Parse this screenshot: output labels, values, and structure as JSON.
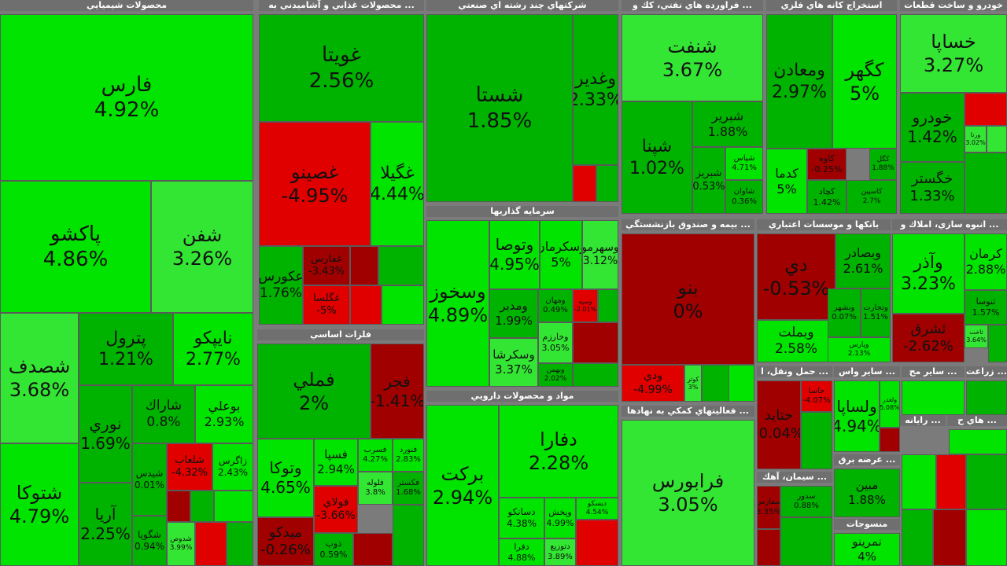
{
  "colors": {
    "strong_up": "#00e400",
    "mid_up": "#00b300",
    "light_up": "#33e633",
    "down": "#e00000",
    "dark_down": "#a10000",
    "header_bg": "#6f6f6f"
  },
  "chart_data": {
    "type": "treemap",
    "sectors": [
      {
        "name": "محصولات شيميايي",
        "tiles": [
          {
            "symbol": "فارس",
            "change": 4.92,
            "shade": "strong_up"
          },
          {
            "symbol": "پاكشو",
            "change": 4.86,
            "shade": "strong_up"
          },
          {
            "symbol": "شفن",
            "change": 3.26,
            "shade": "light_up"
          },
          {
            "symbol": "شصدف",
            "change": 3.68,
            "shade": "light_up"
          },
          {
            "symbol": "پترول",
            "change": 1.21,
            "shade": "mid_up"
          },
          {
            "symbol": "نايپكو",
            "change": 2.77,
            "shade": "strong_up"
          },
          {
            "symbol": "نوري",
            "change": 1.69,
            "shade": "mid_up"
          },
          {
            "symbol": "شاراك",
            "change": 0.8,
            "shade": "mid_up"
          },
          {
            "symbol": "بوعلي",
            "change": 2.93,
            "shade": "strong_up"
          },
          {
            "symbol": "شتوكا",
            "change": 4.79,
            "shade": "strong_up"
          },
          {
            "symbol": "آريا",
            "change": 2.25,
            "shade": "mid_up"
          },
          {
            "symbol": "شلعاب",
            "change": -4.32,
            "shade": "down"
          },
          {
            "symbol": "زاگرس",
            "change": 2.43,
            "shade": "strong_up"
          },
          {
            "symbol": "شيدس",
            "change": 0.01,
            "shade": "mid_up"
          },
          {
            "symbol": "شگويا",
            "change": 0.94,
            "shade": "mid_up"
          },
          {
            "symbol": "شدوص",
            "change": 3.99,
            "shade": "light_up"
          }
        ]
      },
      {
        "name": "... محصولات غذايي و آشاميدني به",
        "tiles": [
          {
            "symbol": "غويتا",
            "change": 2.56,
            "shade": "mid_up"
          },
          {
            "symbol": "غصينو",
            "change": -4.95,
            "shade": "down"
          },
          {
            "symbol": "غگيلا",
            "change": 4.44,
            "shade": "strong_up"
          },
          {
            "symbol": "عكورس",
            "change": 1.76,
            "shade": "mid_up"
          },
          {
            "symbol": "غفارس",
            "change": -3.43,
            "shade": "dark_down"
          },
          {
            "symbol": "غگلسا",
            "change": -5,
            "shade": "down"
          }
        ]
      },
      {
        "name": "شركتهاي چند رشته اي صنعتي",
        "tiles": [
          {
            "symbol": "شستا",
            "change": 1.85,
            "shade": "mid_up"
          },
          {
            "symbol": "وغدير",
            "change": 2.33,
            "shade": "mid_up"
          }
        ]
      },
      {
        "name": "... فراورده هاي نفتي، كك و",
        "tiles": [
          {
            "symbol": "شنفت",
            "change": 3.67,
            "shade": "light_up"
          },
          {
            "symbol": "شپنا",
            "change": 1.02,
            "shade": "mid_up"
          },
          {
            "symbol": "شبرير",
            "change": 1.88,
            "shade": "mid_up"
          },
          {
            "symbol": "شپاس",
            "change": 4.71,
            "shade": "strong_up"
          },
          {
            "symbol": "شبريز",
            "change": 0.53,
            "shade": "mid_up"
          },
          {
            "symbol": "شاوان",
            "change": 0.36,
            "shade": "mid_up"
          }
        ]
      },
      {
        "name": "استخراج كانه هاي فلزي",
        "tiles": [
          {
            "symbol": "ومعادن",
            "change": 2.97,
            "shade": "mid_up"
          },
          {
            "symbol": "كگهر",
            "change": 5,
            "shade": "strong_up"
          },
          {
            "symbol": "كدما",
            "change": 5,
            "shade": "strong_up"
          },
          {
            "symbol": "كچاد",
            "change": 1.42,
            "shade": "mid_up"
          },
          {
            "symbol": "كاوه",
            "change": -0.25,
            "shade": "dark_down"
          },
          {
            "symbol": "كگل",
            "change": 1.88,
            "shade": "mid_up"
          },
          {
            "symbol": "كاسپين",
            "change": 2.7,
            "shade": "mid_up"
          }
        ]
      },
      {
        "name": "خودرو و ساخت قطعات",
        "tiles": [
          {
            "symbol": "خساپا",
            "change": 3.27,
            "shade": "light_up"
          },
          {
            "symbol": "خودرو",
            "change": 1.42,
            "shade": "mid_up"
          },
          {
            "symbol": "خگستر",
            "change": 1.33,
            "shade": "mid_up"
          },
          {
            "symbol": "ورنا",
            "change": 3.02,
            "shade": "light_up"
          }
        ]
      },
      {
        "name": "سرمايه گذاريها",
        "tiles": [
          {
            "symbol": "وسخوز",
            "change": 4.89,
            "shade": "strong_up"
          },
          {
            "symbol": "وتوصا",
            "change": 4.95,
            "shade": "strong_up"
          },
          {
            "symbol": "وسكرمان",
            "change": 5,
            "shade": "strong_up"
          },
          {
            "symbol": "وسهرمو",
            "change": 3.12,
            "shade": "light_up"
          },
          {
            "symbol": "ومدبر",
            "change": 1.99,
            "shade": "mid_up"
          },
          {
            "symbol": "وسكرشا",
            "change": 3.37,
            "shade": "light_up"
          },
          {
            "symbol": "وخارزم",
            "change": 3.05,
            "shade": "light_up"
          },
          {
            "symbol": "ومهان",
            "change": 0.49,
            "shade": "mid_up"
          },
          {
            "symbol": "وبهمن",
            "change": 2.02,
            "shade": "mid_up"
          },
          {
            "symbol": "وسپه",
            "change": -2.01,
            "shade": "down"
          }
        ]
      },
      {
        "name": "فلزات اساسي",
        "tiles": [
          {
            "symbol": "فملي",
            "change": 2,
            "shade": "mid_up"
          },
          {
            "symbol": "فجر",
            "change": -1.41,
            "shade": "dark_down"
          },
          {
            "symbol": "وتوكا",
            "change": 4.65,
            "shade": "strong_up"
          },
          {
            "symbol": "فسپا",
            "change": 2.94,
            "shade": "strong_up"
          },
          {
            "symbol": "فسرب",
            "change": 4.27,
            "shade": "strong_up"
          },
          {
            "symbol": "فنورد",
            "change": 2.83,
            "shade": "strong_up"
          },
          {
            "symbol": "فلوله",
            "change": 3.8,
            "shade": "light_up"
          },
          {
            "symbol": "فكستر",
            "change": 1.68,
            "shade": "mid_up"
          },
          {
            "symbol": "فولاي",
            "change": -3.66,
            "shade": "down"
          },
          {
            "symbol": "ميدكو",
            "change": -0.26,
            "shade": "dark_down"
          },
          {
            "symbol": "ذوب",
            "change": 0.59,
            "shade": "mid_up"
          }
        ]
      },
      {
        "name": "مواد و محصولات دارويي",
        "tiles": [
          {
            "symbol": "بركت",
            "change": 2.94,
            "shade": "strong_up"
          },
          {
            "symbol": "دفارا",
            "change": 2.28,
            "shade": "strong_up"
          },
          {
            "symbol": "دسانكو",
            "change": 4.38,
            "shade": "strong_up"
          },
          {
            "symbol": "وپخش",
            "change": 4.99,
            "shade": "strong_up"
          },
          {
            "symbol": "دفرا",
            "change": 4.88,
            "shade": "strong_up"
          },
          {
            "symbol": "دتوزيع",
            "change": 3.89,
            "shade": "light_up"
          },
          {
            "symbol": "ديسكو",
            "change": 4.54,
            "shade": "strong_up"
          }
        ]
      },
      {
        "name": "... بيمه و صندوق بازنشستگي",
        "tiles": [
          {
            "symbol": "بنو",
            "change": 0,
            "shade": "dark_down"
          },
          {
            "symbol": "ودي",
            "change": -4.99,
            "shade": "down"
          },
          {
            "symbol": "كوثر",
            "change": 3,
            "shade": "light_up"
          }
        ]
      },
      {
        "name": "بانكها و موسسات اعتباري",
        "tiles": [
          {
            "symbol": "دي",
            "change": -0.53,
            "shade": "dark_down"
          },
          {
            "symbol": "وبصادر",
            "change": 2.61,
            "shade": "mid_up"
          },
          {
            "symbol": "وبملت",
            "change": 2.58,
            "shade": "strong_up"
          },
          {
            "symbol": "وبشهر",
            "change": 0.07,
            "shade": "mid_up"
          },
          {
            "symbol": "وتجارت",
            "change": 1.51,
            "shade": "mid_up"
          },
          {
            "symbol": "وپارس",
            "change": 2.13,
            "shade": "strong_up"
          }
        ]
      },
      {
        "name": "... انبوه سازي، املاك و",
        "tiles": [
          {
            "symbol": "وآذر",
            "change": 3.23,
            "shade": "strong_up"
          },
          {
            "symbol": "كرمان",
            "change": 2.88,
            "shade": "strong_up"
          },
          {
            "symbol": "ثشرق",
            "change": -2.62,
            "shade": "dark_down"
          },
          {
            "symbol": "ثنوسا",
            "change": 1.57,
            "shade": "mid_up"
          },
          {
            "symbol": "ثاخت",
            "change": 3.64,
            "shade": "light_up"
          }
        ]
      },
      {
        "name": "... فعاليتهاي كمكي به نهادها",
        "tiles": [
          {
            "symbol": "فرابورس",
            "change": 3.05,
            "shade": "light_up"
          }
        ]
      },
      {
        "name": "... حمل ونقل، ا",
        "tiles": [
          {
            "symbol": "حتايد",
            "change": -0.04,
            "shade": "dark_down"
          },
          {
            "symbol": "حاسا",
            "change": -4.07,
            "shade": "down"
          }
        ]
      },
      {
        "name": "... ساير واس",
        "tiles": [
          {
            "symbol": "ولساپا",
            "change": 4.94,
            "shade": "strong_up"
          },
          {
            "symbol": "ولغدر",
            "change": 5.08,
            "shade": "strong_up"
          }
        ]
      },
      {
        "name": "... ساير مح",
        "tiles": []
      },
      {
        "name": "... زراعت",
        "tiles": []
      },
      {
        "name": "... رايانه",
        "tiles": []
      },
      {
        "name": "... هاي ح",
        "tiles": [
          {
            "symbol": "",
            "change": 2.25,
            "shade": "strong_up"
          }
        ]
      },
      {
        "name": "... سيمان، آهك",
        "tiles": [
          {
            "symbol": "سفارس",
            "change": 3.35,
            "shade": "dark_down"
          },
          {
            "symbol": "سدور",
            "change": 0.88,
            "shade": "mid_up"
          }
        ]
      },
      {
        "name": "... عرضه برق",
        "tiles": [
          {
            "symbol": "مبين",
            "change": 1.88,
            "shade": "mid_up"
          }
        ]
      },
      {
        "name": "منسوجات",
        "tiles": [
          {
            "symbol": "نمرينو",
            "change": 4,
            "shade": "strong_up"
          }
        ]
      }
    ]
  }
}
